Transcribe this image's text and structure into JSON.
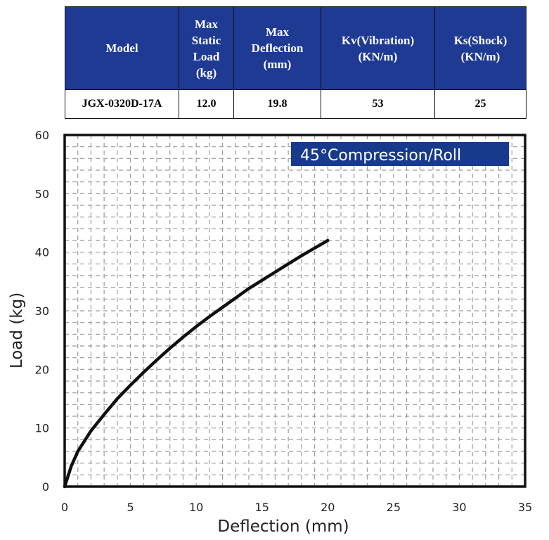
{
  "table": {
    "headers": [
      "Model",
      "Max Static Load (kg)",
      "Max Deflection (mm)",
      "Kv(Vibration) (KN/m)",
      "Ks(Shock) (KN/m)"
    ],
    "header_lines": [
      [
        "Model"
      ],
      [
        "Max",
        "Static",
        "Load",
        "(kg)"
      ],
      [
        "Max",
        "Deflection",
        "(mm)"
      ],
      [
        "Kv(Vibration)",
        "(KN/m)"
      ],
      [
        "Ks(Shock)",
        "(KN/m)"
      ]
    ],
    "rows": [
      [
        "JGX-0320D-17A",
        "12.0",
        "19.8",
        "53",
        "25"
      ]
    ]
  },
  "chart_data": {
    "type": "line",
    "title": "45°Compression/Roll",
    "xlabel": "Deflection (mm)",
    "ylabel": "Load (kg)",
    "xlim": [
      0,
      35
    ],
    "ylim": [
      0,
      60
    ],
    "xticks": [
      "0",
      "5",
      "10",
      "15",
      "20",
      "25",
      "30",
      "35"
    ],
    "yticks": [
      "0",
      "10",
      "20",
      "30",
      "40",
      "50",
      "60"
    ],
    "grid": true,
    "series": [
      {
        "x": [
          0,
          0.5,
          1,
          2,
          3,
          4,
          5,
          6,
          7,
          8,
          9,
          10,
          11,
          12,
          13,
          14,
          15,
          16,
          17,
          18,
          19,
          20
        ],
        "y": [
          0,
          3.5,
          6,
          9.5,
          12.3,
          15,
          17.3,
          19.5,
          21.6,
          23.6,
          25.5,
          27.3,
          29,
          30.6,
          32.2,
          33.8,
          35.2,
          36.6,
          38,
          39.4,
          40.7,
          42
        ]
      }
    ],
    "colors": {
      "line": "#111111",
      "legend_bg": "#173a8c",
      "legend_text": "#ffffff",
      "grid": "#9a9a9a"
    }
  }
}
